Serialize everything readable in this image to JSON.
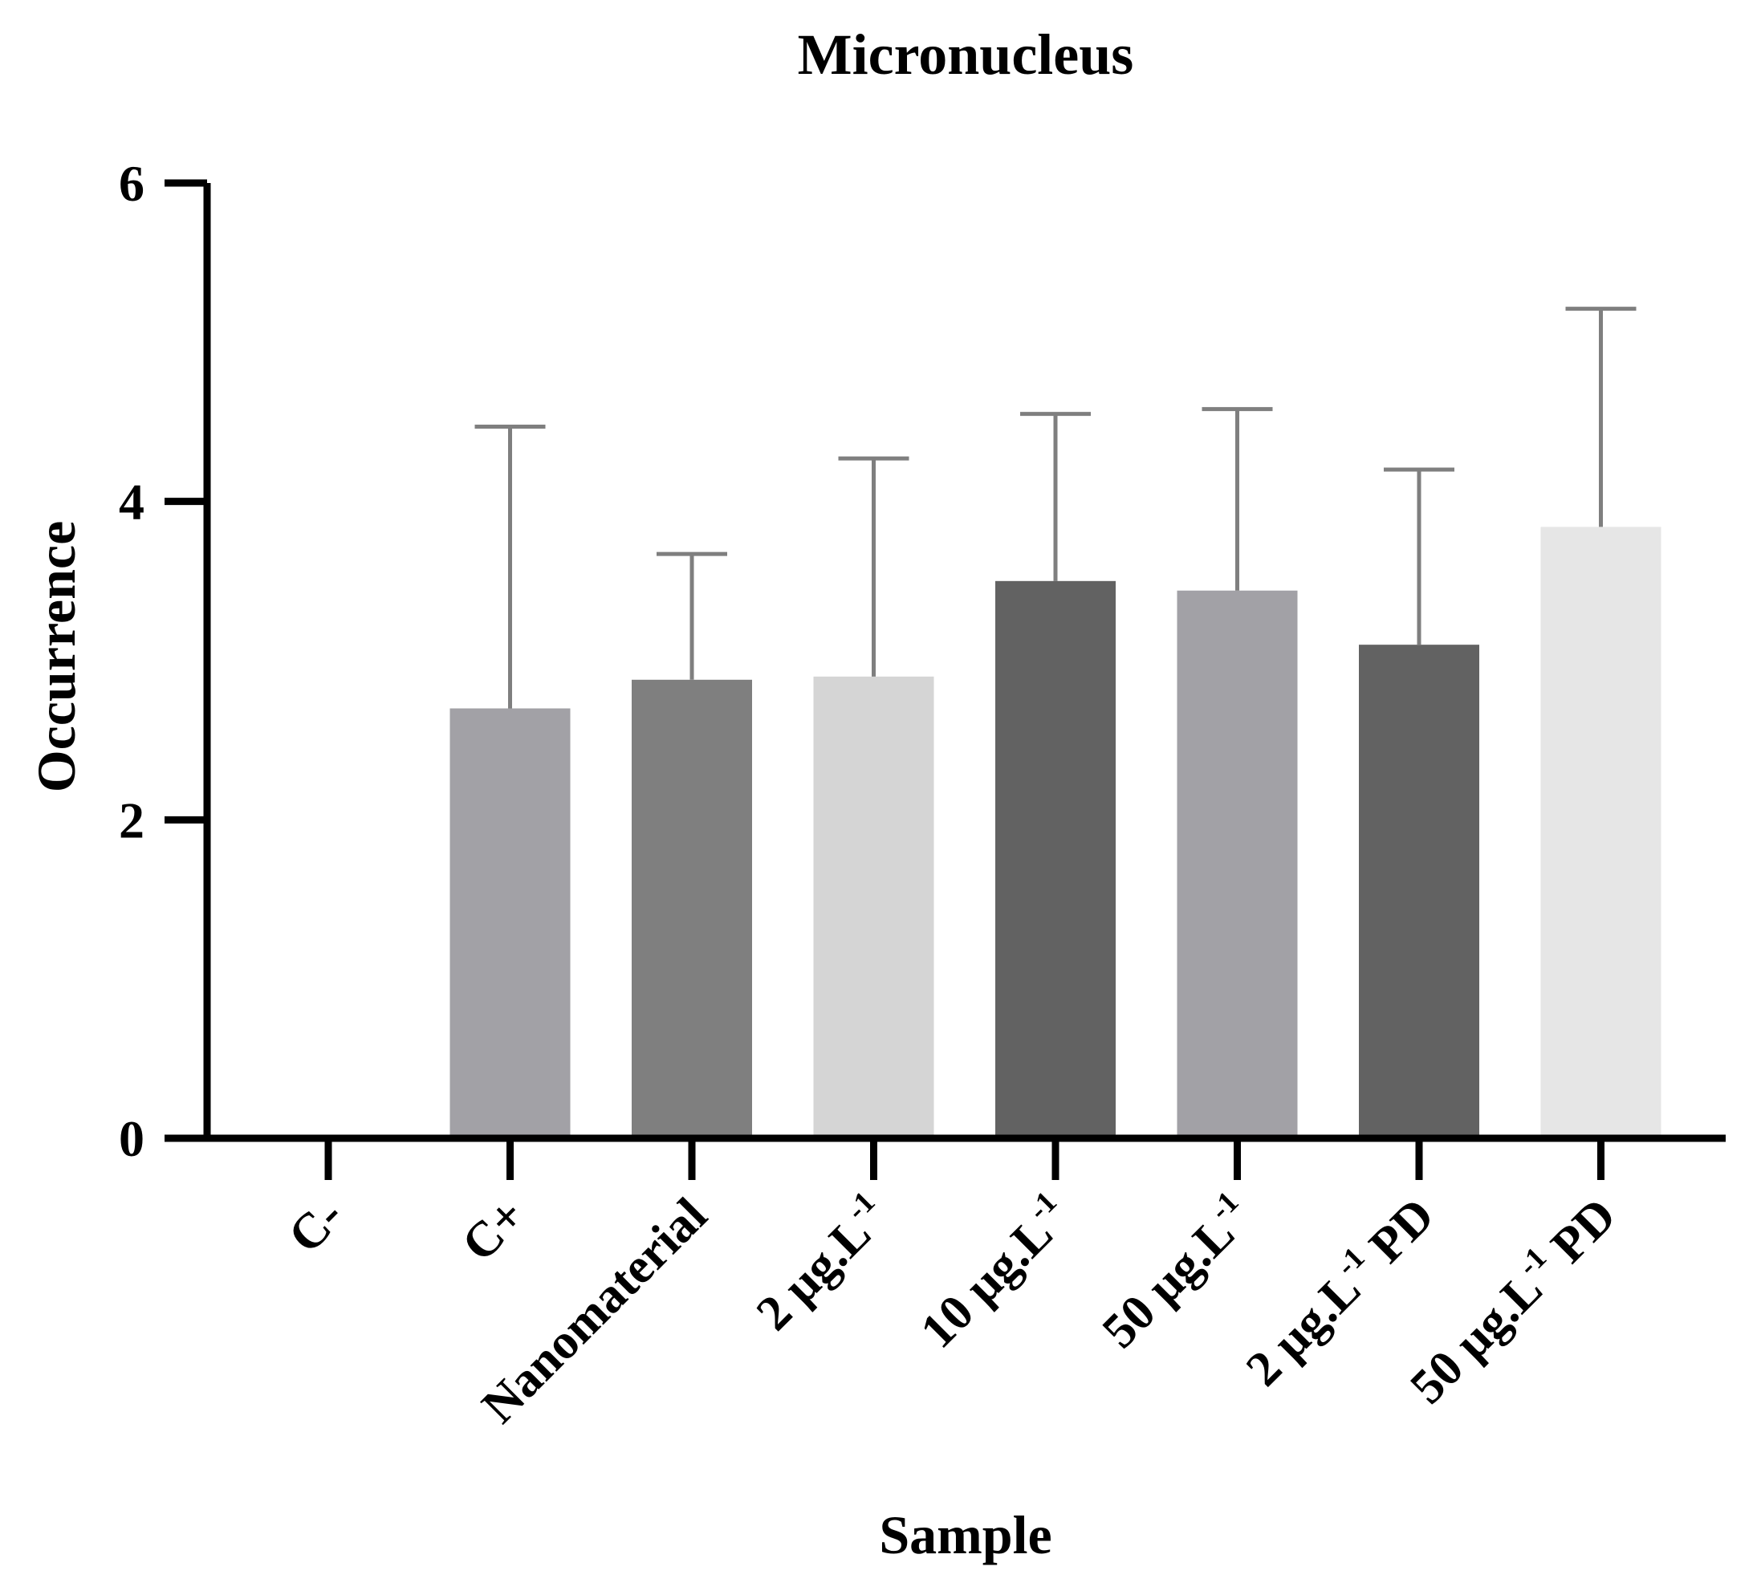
{
  "chart_data": {
    "type": "bar",
    "title": "Micronucleus",
    "xlabel": "Sample",
    "ylabel": "Occurrence",
    "ylim": [
      0,
      6
    ],
    "yticks": [
      "0",
      "2",
      "4",
      "6"
    ],
    "categories": [
      {
        "label": "C-"
      },
      {
        "label": "C+"
      },
      {
        "label": "Nanomaterial"
      },
      {
        "label": "2 µg.L",
        "sup": "-1"
      },
      {
        "label": "10 µg.L",
        "sup": "-1"
      },
      {
        "label": "50 µg.L",
        "sup": "-1"
      },
      {
        "label": "2 µg.L",
        "sup": "-1",
        "suffix": " PD"
      },
      {
        "label": "50 µg.L",
        "sup": "-1",
        "suffix": " PD"
      }
    ],
    "values": [
      0,
      2.7,
      2.88,
      2.9,
      3.5,
      3.44,
      3.1,
      3.84
    ],
    "errors": [
      0,
      1.77,
      0.79,
      1.37,
      1.05,
      1.14,
      1.1,
      1.37
    ],
    "colors": [
      "#ffffff",
      "#a2a1a6",
      "#7f7f7f",
      "#d5d5d5",
      "#626262",
      "#a2a1a6",
      "#626262",
      "#e6e6e6"
    ],
    "error_color": "#7f7f7f",
    "grid": false
  }
}
